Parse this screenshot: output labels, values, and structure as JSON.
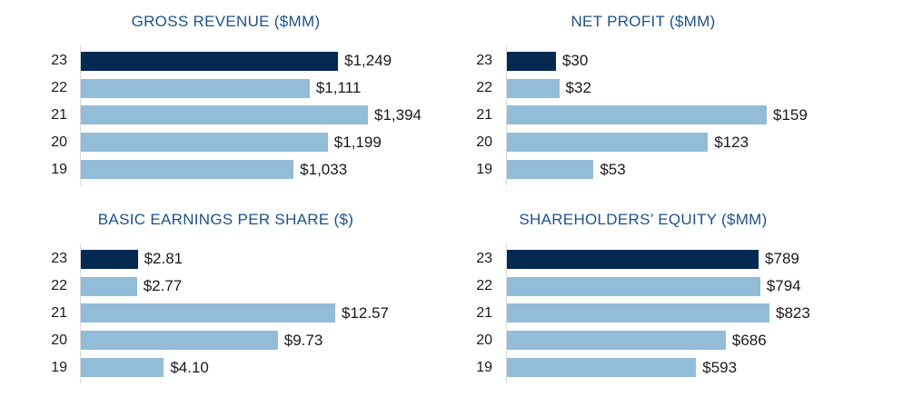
{
  "page": {
    "background": "#ffffff"
  },
  "colors": {
    "bar_highlight": "#052a51",
    "bar_default": "#92bcd8",
    "title_text": "#1e5189",
    "axis_line": "#d9d9d9",
    "label_text": "#1a1a1a"
  },
  "chart_data": [
    {
      "id": "gross-revenue",
      "type": "bar",
      "orientation": "horizontal",
      "title": "GROSS REVENUE ($MM)",
      "categories": [
        "23",
        "22",
        "21",
        "20",
        "19"
      ],
      "values": [
        1249,
        1111,
        1394,
        1199,
        1033
      ],
      "value_labels": [
        "$1,249",
        "$1,111",
        "$1,394",
        "$1,199",
        "$1,033"
      ],
      "xlim": [
        0,
        1394
      ],
      "highlight_category": "23",
      "grid": false,
      "legend": false
    },
    {
      "id": "net-profit",
      "type": "bar",
      "orientation": "horizontal",
      "title": "NET PROFIT ($MM)",
      "categories": [
        "23",
        "22",
        "21",
        "20",
        "19"
      ],
      "values": [
        30,
        32,
        159,
        123,
        53
      ],
      "value_labels": [
        "$30",
        "$32",
        "$159",
        "$123",
        "$53"
      ],
      "xlim": [
        0,
        159
      ],
      "highlight_category": "23",
      "grid": false,
      "legend": false
    },
    {
      "id": "basic-eps",
      "type": "bar",
      "orientation": "horizontal",
      "title": "BASIC EARNINGS PER SHARE ($)",
      "categories": [
        "23",
        "22",
        "21",
        "20",
        "19"
      ],
      "values": [
        2.81,
        2.77,
        12.57,
        9.73,
        4.1
      ],
      "value_labels": [
        "$2.81",
        "$2.77",
        "$12.57",
        "$9.73",
        "$4.10"
      ],
      "xlim": [
        0,
        12.57
      ],
      "highlight_category": "23",
      "grid": false,
      "legend": false
    },
    {
      "id": "shareholders-equity",
      "type": "bar",
      "orientation": "horizontal",
      "title": "SHAREHOLDERS’ EQUITY ($MM)",
      "categories": [
        "23",
        "22",
        "21",
        "20",
        "19"
      ],
      "values": [
        789,
        794,
        823,
        686,
        593
      ],
      "value_labels": [
        "$789",
        "$794",
        "$823",
        "$686",
        "$593"
      ],
      "xlim": [
        0,
        823
      ],
      "highlight_category": "23",
      "grid": false,
      "legend": false
    }
  ]
}
